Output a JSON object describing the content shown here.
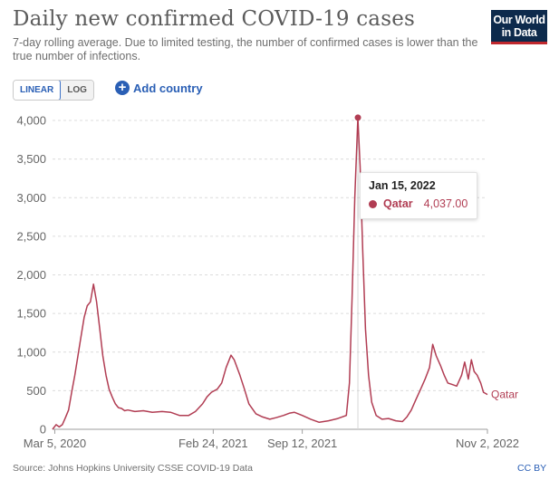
{
  "header": {
    "title": "Daily new confirmed COVID-19 cases",
    "subtitle": "7-day rolling average. Due to limited testing, the number of confirmed cases is lower than the true number of infections.",
    "logo_line1": "Our World",
    "logo_line2": "in Data"
  },
  "controls": {
    "linear_label": "LINEAR",
    "log_label": "LOG",
    "add_country_label": "Add country",
    "scale_selected": "LINEAR"
  },
  "tooltip": {
    "date": "Jan 15, 2022",
    "series": "Qatar",
    "value": "4,037.00"
  },
  "footer": {
    "source": "Source: Johns Hopkins University CSSE COVID-19 Data",
    "license": "CC BY"
  },
  "colors": {
    "series": "#b13d53",
    "accent": "#2a5fb5",
    "logo_bg": "#0d2a4c",
    "logo_bar": "#c0282e"
  },
  "chart_data": {
    "type": "line",
    "title": "Daily new confirmed COVID-19 cases",
    "xlabel": "",
    "ylabel": "",
    "ylim": [
      0,
      4000
    ],
    "yticks": [
      0,
      500,
      1000,
      1500,
      2000,
      2500,
      3000,
      3500,
      4000
    ],
    "ytick_labels": [
      "0",
      "500",
      "1,000",
      "1,500",
      "2,000",
      "2,500",
      "3,000",
      "3,500",
      "4,000"
    ],
    "xlim": [
      "2020-02-29",
      "2022-11-02"
    ],
    "xticks": [
      "2020-03-05",
      "2021-02-24",
      "2021-09-12",
      "2022-11-02"
    ],
    "xtick_labels": [
      "Mar 5, 2020",
      "Feb 24, 2021",
      "Sep 12, 2021",
      "Nov 2, 2022"
    ],
    "grid": "horizontal dashed",
    "series": [
      {
        "name": "Qatar",
        "label_position": "end",
        "highlight": {
          "x": "2022-01-15",
          "y": 4037
        },
        "points": [
          [
            "2020-02-29",
            0
          ],
          [
            "2020-03-08",
            60
          ],
          [
            "2020-03-15",
            30
          ],
          [
            "2020-03-22",
            60
          ],
          [
            "2020-03-29",
            150
          ],
          [
            "2020-04-05",
            250
          ],
          [
            "2020-04-12",
            480
          ],
          [
            "2020-04-19",
            700
          ],
          [
            "2020-04-26",
            950
          ],
          [
            "2020-05-03",
            1200
          ],
          [
            "2020-05-10",
            1450
          ],
          [
            "2020-05-17",
            1600
          ],
          [
            "2020-05-24",
            1650
          ],
          [
            "2020-05-31",
            1880
          ],
          [
            "2020-06-07",
            1650
          ],
          [
            "2020-06-14",
            1300
          ],
          [
            "2020-06-21",
            950
          ],
          [
            "2020-06-28",
            700
          ],
          [
            "2020-07-05",
            520
          ],
          [
            "2020-07-12",
            420
          ],
          [
            "2020-07-19",
            330
          ],
          [
            "2020-07-26",
            280
          ],
          [
            "2020-08-02",
            270
          ],
          [
            "2020-08-09",
            240
          ],
          [
            "2020-08-16",
            250
          ],
          [
            "2020-09-01",
            230
          ],
          [
            "2020-09-20",
            240
          ],
          [
            "2020-10-10",
            220
          ],
          [
            "2020-11-01",
            230
          ],
          [
            "2020-11-20",
            220
          ],
          [
            "2020-12-10",
            180
          ],
          [
            "2020-12-31",
            180
          ],
          [
            "2021-01-15",
            230
          ],
          [
            "2021-01-31",
            330
          ],
          [
            "2021-02-10",
            420
          ],
          [
            "2021-02-20",
            480
          ],
          [
            "2021-03-05",
            520
          ],
          [
            "2021-03-15",
            600
          ],
          [
            "2021-03-25",
            800
          ],
          [
            "2021-04-05",
            960
          ],
          [
            "2021-04-12",
            900
          ],
          [
            "2021-04-25",
            700
          ],
          [
            "2021-05-05",
            520
          ],
          [
            "2021-05-15",
            330
          ],
          [
            "2021-05-31",
            200
          ],
          [
            "2021-06-15",
            160
          ],
          [
            "2021-07-01",
            130
          ],
          [
            "2021-07-15",
            150
          ],
          [
            "2021-08-01",
            180
          ],
          [
            "2021-08-15",
            210
          ],
          [
            "2021-08-25",
            220
          ],
          [
            "2021-09-12",
            180
          ],
          [
            "2021-10-01",
            130
          ],
          [
            "2021-10-20",
            90
          ],
          [
            "2021-11-10",
            110
          ],
          [
            "2021-12-01",
            140
          ],
          [
            "2021-12-20",
            180
          ],
          [
            "2021-12-27",
            600
          ],
          [
            "2022-01-02",
            1700
          ],
          [
            "2022-01-08",
            3000
          ],
          [
            "2022-01-15",
            4037
          ],
          [
            "2022-01-20",
            3400
          ],
          [
            "2022-01-26",
            2300
          ],
          [
            "2022-02-01",
            1300
          ],
          [
            "2022-02-08",
            700
          ],
          [
            "2022-02-15",
            350
          ],
          [
            "2022-02-25",
            180
          ],
          [
            "2022-03-10",
            130
          ],
          [
            "2022-03-25",
            140
          ],
          [
            "2022-04-10",
            110
          ],
          [
            "2022-04-25",
            100
          ],
          [
            "2022-05-05",
            160
          ],
          [
            "2022-05-15",
            250
          ],
          [
            "2022-05-25",
            380
          ],
          [
            "2022-06-05",
            520
          ],
          [
            "2022-06-15",
            650
          ],
          [
            "2022-06-25",
            800
          ],
          [
            "2022-07-02",
            1100
          ],
          [
            "2022-07-10",
            950
          ],
          [
            "2022-07-20",
            820
          ],
          [
            "2022-07-28",
            700
          ],
          [
            "2022-08-05",
            600
          ],
          [
            "2022-08-15",
            580
          ],
          [
            "2022-08-25",
            560
          ],
          [
            "2022-09-05",
            700
          ],
          [
            "2022-09-12",
            870
          ],
          [
            "2022-09-20",
            650
          ],
          [
            "2022-09-27",
            900
          ],
          [
            "2022-10-03",
            750
          ],
          [
            "2022-10-10",
            700
          ],
          [
            "2022-10-18",
            600
          ],
          [
            "2022-10-24",
            480
          ],
          [
            "2022-11-02",
            450
          ]
        ]
      }
    ]
  }
}
